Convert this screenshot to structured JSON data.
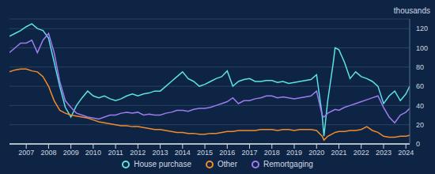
{
  "chart_data": {
    "type": "line",
    "y_label": "thousands",
    "x": [
      2006.25,
      2006.5,
      2006.75,
      2007,
      2007.25,
      2007.5,
      2007.75,
      2008,
      2008.25,
      2008.5,
      2008.75,
      2009,
      2009.25,
      2009.5,
      2009.75,
      2010,
      2010.25,
      2010.5,
      2010.75,
      2011,
      2011.25,
      2011.5,
      2011.75,
      2012,
      2012.25,
      2012.5,
      2012.75,
      2013,
      2013.25,
      2013.5,
      2013.75,
      2014,
      2014.25,
      2014.5,
      2014.75,
      2015,
      2015.25,
      2015.5,
      2015.75,
      2016,
      2016.25,
      2016.5,
      2016.75,
      2017,
      2017.25,
      2017.5,
      2017.75,
      2018,
      2018.25,
      2018.5,
      2018.75,
      2019,
      2019.25,
      2019.5,
      2019.75,
      2020,
      2020.25,
      2020.33,
      2020.5,
      2020.75,
      2020.83,
      2021,
      2021.25,
      2021.5,
      2021.75,
      2022,
      2022.25,
      2022.5,
      2022.75,
      2023,
      2023.25,
      2023.5,
      2023.75,
      2024,
      2024.17
    ],
    "series": [
      {
        "name": "House purchase",
        "color": "#5ce1e6",
        "values": [
          112,
          115,
          118,
          122,
          125,
          120,
          118,
          110,
          85,
          60,
          38,
          28,
          40,
          48,
          55,
          50,
          48,
          50,
          47,
          45,
          47,
          50,
          52,
          50,
          52,
          53,
          55,
          55,
          60,
          65,
          70,
          75,
          68,
          65,
          60,
          62,
          65,
          68,
          70,
          76,
          60,
          65,
          67,
          68,
          65,
          65,
          66,
          66,
          64,
          65,
          63,
          64,
          65,
          66,
          67,
          72,
          30,
          8,
          45,
          85,
          100,
          98,
          85,
          68,
          75,
          70,
          68,
          65,
          60,
          42,
          50,
          55,
          45,
          52,
          60
        ]
      },
      {
        "name": "Other",
        "color": "#f28c28",
        "values": [
          75,
          77,
          78,
          78,
          76,
          75,
          70,
          60,
          45,
          35,
          32,
          30,
          29,
          28,
          27,
          25,
          23,
          22,
          21,
          20,
          19,
          19,
          18,
          18,
          17,
          16,
          15,
          15,
          14,
          13,
          12,
          12,
          11,
          11,
          10,
          10,
          11,
          11,
          12,
          13,
          13,
          14,
          14,
          14,
          14,
          15,
          15,
          15,
          14,
          15,
          15,
          14,
          15,
          15,
          15,
          14,
          8,
          4,
          8,
          11,
          12,
          13,
          13,
          14,
          14,
          15,
          18,
          14,
          12,
          8,
          7,
          7,
          8,
          8,
          9
        ]
      },
      {
        "name": "Remortgaging",
        "color": "#9d7cf0",
        "values": [
          95,
          100,
          105,
          105,
          108,
          95,
          108,
          115,
          95,
          65,
          45,
          38,
          32,
          30,
          28,
          27,
          26,
          28,
          30,
          30,
          32,
          33,
          32,
          33,
          30,
          31,
          30,
          30,
          32,
          33,
          35,
          35,
          34,
          36,
          37,
          37,
          38,
          40,
          42,
          44,
          48,
          42,
          45,
          45,
          47,
          48,
          50,
          50,
          48,
          49,
          48,
          47,
          48,
          49,
          50,
          55,
          30,
          28,
          32,
          35,
          36,
          35,
          38,
          40,
          42,
          44,
          46,
          48,
          50,
          38,
          28,
          22,
          30,
          33,
          37
        ]
      }
    ],
    "xlim": [
      2006.25,
      2024.17
    ],
    "xticks": [
      2007,
      2008,
      2009,
      2010,
      2011,
      2012,
      2013,
      2014,
      2015,
      2016,
      2017,
      2018,
      2019,
      2020,
      2021,
      2022,
      2023,
      2024
    ],
    "ylim": [
      0,
      130
    ],
    "yticks": [
      0,
      20,
      40,
      60,
      80,
      100,
      120
    ],
    "grid": true,
    "legend": "bottom"
  }
}
